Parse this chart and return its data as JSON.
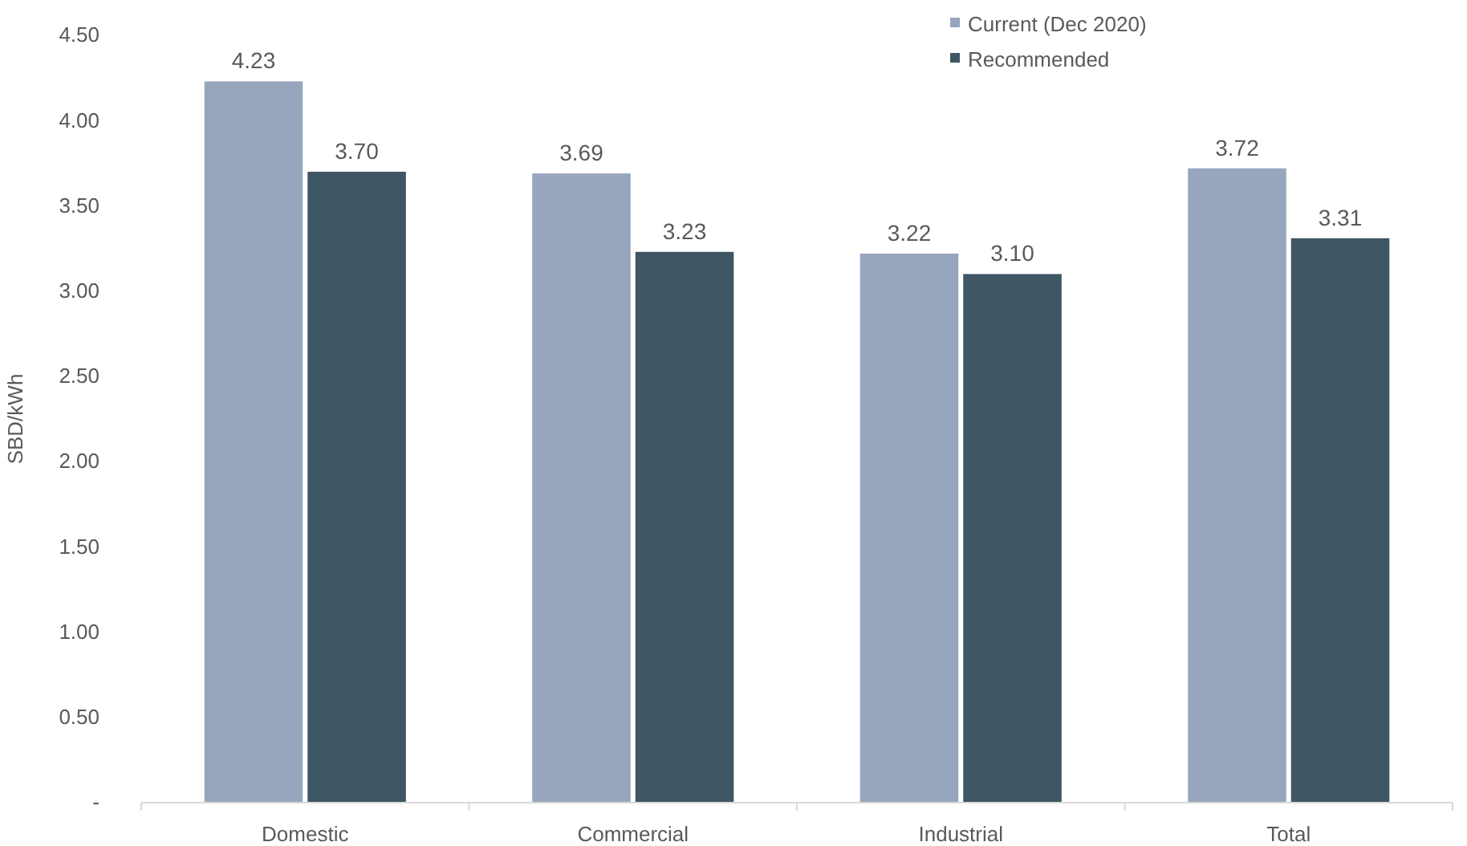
{
  "chart_data": {
    "type": "bar",
    "ylabel": "SBD/kWh",
    "categories": [
      "Domestic",
      "Commercial",
      "Industrial",
      "Total"
    ],
    "series": [
      {
        "name": "Current (Dec 2020)",
        "color": "#97a6bd",
        "values": [
          4.23,
          3.69,
          3.22,
          3.72
        ],
        "value_labels": [
          "4.23",
          "3.69",
          "3.22",
          "3.72"
        ]
      },
      {
        "name": "Recommended",
        "color": "#3f5664",
        "values": [
          3.7,
          3.23,
          3.1,
          3.31
        ],
        "value_labels": [
          "3.70",
          "3.23",
          "3.10",
          "3.31"
        ]
      }
    ],
    "ylim": [
      0,
      4.5
    ],
    "yticks": [
      {
        "value": 0,
        "label": "-"
      },
      {
        "value": 0.5,
        "label": "0.50"
      },
      {
        "value": 1,
        "label": "1.00"
      },
      {
        "value": 1.5,
        "label": "1.50"
      },
      {
        "value": 2,
        "label": "2.00"
      },
      {
        "value": 2.5,
        "label": "2.50"
      },
      {
        "value": 3,
        "label": "3.00"
      },
      {
        "value": 3.5,
        "label": "3.50"
      },
      {
        "value": 4,
        "label": "4.00"
      },
      {
        "value": 4.5,
        "label": "4.50"
      }
    ],
    "legend": "top right",
    "grid": false
  }
}
